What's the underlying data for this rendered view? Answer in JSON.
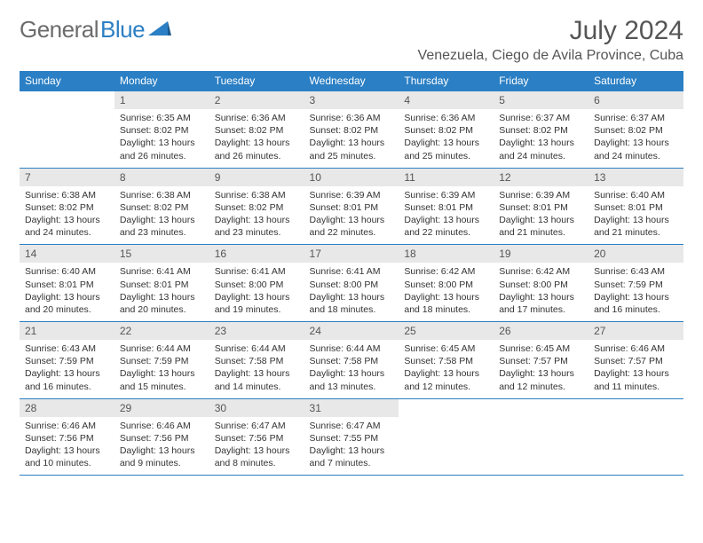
{
  "brand": {
    "part1": "General",
    "part2": "Blue"
  },
  "title": "July 2024",
  "location": "Venezuela, Ciego de Avila Province, Cuba",
  "colors": {
    "header_bg": "#2b7fc4",
    "header_text": "#ffffff",
    "daynum_bg": "#e8e8e8",
    "text": "#333333",
    "title_text": "#555555",
    "brand_gray": "#6c6c6c",
    "brand_blue": "#2b7fc4",
    "border": "#2b7fc4"
  },
  "daynames": [
    "Sunday",
    "Monday",
    "Tuesday",
    "Wednesday",
    "Thursday",
    "Friday",
    "Saturday"
  ],
  "weeks": [
    [
      {
        "n": "",
        "sr": "",
        "ss": "",
        "dl": ""
      },
      {
        "n": "1",
        "sr": "Sunrise: 6:35 AM",
        "ss": "Sunset: 8:02 PM",
        "dl": "Daylight: 13 hours and 26 minutes."
      },
      {
        "n": "2",
        "sr": "Sunrise: 6:36 AM",
        "ss": "Sunset: 8:02 PM",
        "dl": "Daylight: 13 hours and 26 minutes."
      },
      {
        "n": "3",
        "sr": "Sunrise: 6:36 AM",
        "ss": "Sunset: 8:02 PM",
        "dl": "Daylight: 13 hours and 25 minutes."
      },
      {
        "n": "4",
        "sr": "Sunrise: 6:36 AM",
        "ss": "Sunset: 8:02 PM",
        "dl": "Daylight: 13 hours and 25 minutes."
      },
      {
        "n": "5",
        "sr": "Sunrise: 6:37 AM",
        "ss": "Sunset: 8:02 PM",
        "dl": "Daylight: 13 hours and 24 minutes."
      },
      {
        "n": "6",
        "sr": "Sunrise: 6:37 AM",
        "ss": "Sunset: 8:02 PM",
        "dl": "Daylight: 13 hours and 24 minutes."
      }
    ],
    [
      {
        "n": "7",
        "sr": "Sunrise: 6:38 AM",
        "ss": "Sunset: 8:02 PM",
        "dl": "Daylight: 13 hours and 24 minutes."
      },
      {
        "n": "8",
        "sr": "Sunrise: 6:38 AM",
        "ss": "Sunset: 8:02 PM",
        "dl": "Daylight: 13 hours and 23 minutes."
      },
      {
        "n": "9",
        "sr": "Sunrise: 6:38 AM",
        "ss": "Sunset: 8:02 PM",
        "dl": "Daylight: 13 hours and 23 minutes."
      },
      {
        "n": "10",
        "sr": "Sunrise: 6:39 AM",
        "ss": "Sunset: 8:01 PM",
        "dl": "Daylight: 13 hours and 22 minutes."
      },
      {
        "n": "11",
        "sr": "Sunrise: 6:39 AM",
        "ss": "Sunset: 8:01 PM",
        "dl": "Daylight: 13 hours and 22 minutes."
      },
      {
        "n": "12",
        "sr": "Sunrise: 6:39 AM",
        "ss": "Sunset: 8:01 PM",
        "dl": "Daylight: 13 hours and 21 minutes."
      },
      {
        "n": "13",
        "sr": "Sunrise: 6:40 AM",
        "ss": "Sunset: 8:01 PM",
        "dl": "Daylight: 13 hours and 21 minutes."
      }
    ],
    [
      {
        "n": "14",
        "sr": "Sunrise: 6:40 AM",
        "ss": "Sunset: 8:01 PM",
        "dl": "Daylight: 13 hours and 20 minutes."
      },
      {
        "n": "15",
        "sr": "Sunrise: 6:41 AM",
        "ss": "Sunset: 8:01 PM",
        "dl": "Daylight: 13 hours and 20 minutes."
      },
      {
        "n": "16",
        "sr": "Sunrise: 6:41 AM",
        "ss": "Sunset: 8:00 PM",
        "dl": "Daylight: 13 hours and 19 minutes."
      },
      {
        "n": "17",
        "sr": "Sunrise: 6:41 AM",
        "ss": "Sunset: 8:00 PM",
        "dl": "Daylight: 13 hours and 18 minutes."
      },
      {
        "n": "18",
        "sr": "Sunrise: 6:42 AM",
        "ss": "Sunset: 8:00 PM",
        "dl": "Daylight: 13 hours and 18 minutes."
      },
      {
        "n": "19",
        "sr": "Sunrise: 6:42 AM",
        "ss": "Sunset: 8:00 PM",
        "dl": "Daylight: 13 hours and 17 minutes."
      },
      {
        "n": "20",
        "sr": "Sunrise: 6:43 AM",
        "ss": "Sunset: 7:59 PM",
        "dl": "Daylight: 13 hours and 16 minutes."
      }
    ],
    [
      {
        "n": "21",
        "sr": "Sunrise: 6:43 AM",
        "ss": "Sunset: 7:59 PM",
        "dl": "Daylight: 13 hours and 16 minutes."
      },
      {
        "n": "22",
        "sr": "Sunrise: 6:44 AM",
        "ss": "Sunset: 7:59 PM",
        "dl": "Daylight: 13 hours and 15 minutes."
      },
      {
        "n": "23",
        "sr": "Sunrise: 6:44 AM",
        "ss": "Sunset: 7:58 PM",
        "dl": "Daylight: 13 hours and 14 minutes."
      },
      {
        "n": "24",
        "sr": "Sunrise: 6:44 AM",
        "ss": "Sunset: 7:58 PM",
        "dl": "Daylight: 13 hours and 13 minutes."
      },
      {
        "n": "25",
        "sr": "Sunrise: 6:45 AM",
        "ss": "Sunset: 7:58 PM",
        "dl": "Daylight: 13 hours and 12 minutes."
      },
      {
        "n": "26",
        "sr": "Sunrise: 6:45 AM",
        "ss": "Sunset: 7:57 PM",
        "dl": "Daylight: 13 hours and 12 minutes."
      },
      {
        "n": "27",
        "sr": "Sunrise: 6:46 AM",
        "ss": "Sunset: 7:57 PM",
        "dl": "Daylight: 13 hours and 11 minutes."
      }
    ],
    [
      {
        "n": "28",
        "sr": "Sunrise: 6:46 AM",
        "ss": "Sunset: 7:56 PM",
        "dl": "Daylight: 13 hours and 10 minutes."
      },
      {
        "n": "29",
        "sr": "Sunrise: 6:46 AM",
        "ss": "Sunset: 7:56 PM",
        "dl": "Daylight: 13 hours and 9 minutes."
      },
      {
        "n": "30",
        "sr": "Sunrise: 6:47 AM",
        "ss": "Sunset: 7:56 PM",
        "dl": "Daylight: 13 hours and 8 minutes."
      },
      {
        "n": "31",
        "sr": "Sunrise: 6:47 AM",
        "ss": "Sunset: 7:55 PM",
        "dl": "Daylight: 13 hours and 7 minutes."
      },
      {
        "n": "",
        "sr": "",
        "ss": "",
        "dl": ""
      },
      {
        "n": "",
        "sr": "",
        "ss": "",
        "dl": ""
      },
      {
        "n": "",
        "sr": "",
        "ss": "",
        "dl": ""
      }
    ]
  ]
}
